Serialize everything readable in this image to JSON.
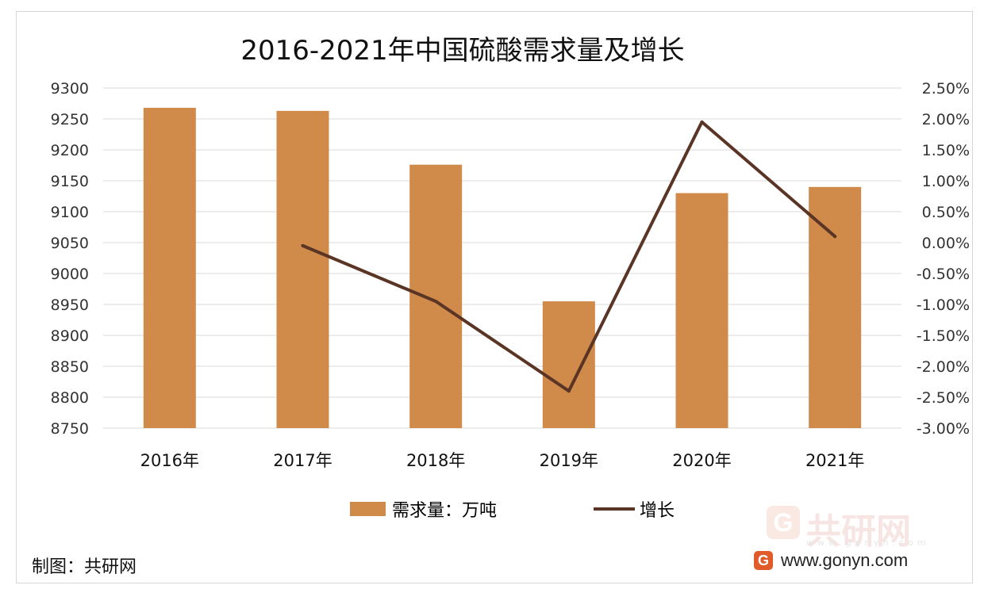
{
  "chart_data": {
    "type": "bar",
    "title": "2016-2021年中国硫酸需求量及增长",
    "categories": [
      "2016年",
      "2017年",
      "2018年",
      "2019年",
      "2020年",
      "2021年"
    ],
    "series": [
      {
        "name": "需求量：万吨",
        "type": "bar",
        "axis": "left",
        "color": "#d08a4a",
        "values": [
          9268,
          9263,
          9176,
          8955,
          9130,
          9140
        ]
      },
      {
        "name": "增长",
        "type": "line",
        "axis": "right",
        "color": "#5a3525",
        "values": [
          null,
          -0.05,
          -0.95,
          -2.4,
          1.95,
          0.1
        ]
      }
    ],
    "y_left": {
      "min": 8750,
      "max": 9300,
      "step": 50,
      "ticks": [
        "8750",
        "8800",
        "8850",
        "8900",
        "8950",
        "9000",
        "9050",
        "9100",
        "9150",
        "9200",
        "9250",
        "9300"
      ]
    },
    "y_right": {
      "min": -3.0,
      "max": 2.5,
      "step": 0.5,
      "ticks": [
        "-3.00%",
        "-2.50%",
        "-2.00%",
        "-1.50%",
        "-1.00%",
        "-0.50%",
        "0.00%",
        "0.50%",
        "1.00%",
        "1.50%",
        "2.00%",
        "2.50%"
      ]
    },
    "grid": true,
    "legend_position": "bottom"
  },
  "legend": {
    "bar_label": "需求量：万吨",
    "line_label": "增长"
  },
  "source_label": "制图：共研网",
  "watermark": {
    "brand": "共研网",
    "url_small": "www.gonyn.com",
    "icon_glyph": "G"
  },
  "site": {
    "url": "www.gonyn.com",
    "icon_glyph": "G"
  }
}
